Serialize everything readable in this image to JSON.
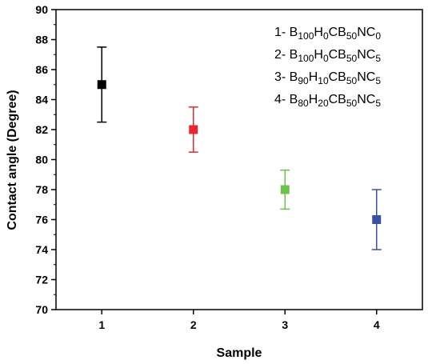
{
  "chart_data": {
    "type": "scatter",
    "title": "",
    "xlabel": "Sample",
    "ylabel": "Contact angle (Degree)",
    "xlim": [
      0.5,
      4.5
    ],
    "ylim": [
      70,
      90
    ],
    "x_ticks": [
      "1",
      "2",
      "3",
      "4"
    ],
    "y_ticks": [
      "70",
      "72",
      "74",
      "76",
      "78",
      "80",
      "82",
      "84",
      "86",
      "88",
      "90"
    ],
    "grid": false,
    "legend_position": "top-right",
    "points": [
      {
        "x": 1,
        "y": 85,
        "err_low": 82.5,
        "err_high": 87.5,
        "color": "#000000"
      },
      {
        "x": 2,
        "y": 82,
        "err_low": 80.5,
        "err_high": 83.5,
        "color": "#e8262b"
      },
      {
        "x": 3,
        "y": 78,
        "err_low": 76.7,
        "err_high": 79.3,
        "color": "#6cc24a"
      },
      {
        "x": 4,
        "y": 76,
        "err_low": 74,
        "err_high": 78,
        "color": "#3a52a5"
      }
    ],
    "legend": [
      {
        "prefix": "1- ",
        "parts": [
          [
            "B",
            ""
          ],
          [
            "100",
            "sub"
          ],
          [
            "H",
            ""
          ],
          [
            "0",
            "sub"
          ],
          [
            "CB",
            ""
          ],
          [
            "50",
            "sub"
          ],
          [
            "NC",
            ""
          ],
          [
            "0",
            "sub"
          ]
        ]
      },
      {
        "prefix": "2- ",
        "parts": [
          [
            "B",
            ""
          ],
          [
            "100",
            "sub"
          ],
          [
            "H",
            ""
          ],
          [
            "0",
            "sub"
          ],
          [
            "CB",
            ""
          ],
          [
            "50",
            "sub"
          ],
          [
            "NC",
            ""
          ],
          [
            "5",
            "sub"
          ]
        ]
      },
      {
        "prefix": "3- ",
        "parts": [
          [
            "B",
            ""
          ],
          [
            "90",
            "sub"
          ],
          [
            "H",
            ""
          ],
          [
            "10",
            "sub"
          ],
          [
            "CB",
            ""
          ],
          [
            "50",
            "sub"
          ],
          [
            "NC",
            ""
          ],
          [
            "5",
            "sub"
          ]
        ]
      },
      {
        "prefix": "4- ",
        "parts": [
          [
            "B",
            ""
          ],
          [
            "80",
            "sub"
          ],
          [
            "H",
            ""
          ],
          [
            "20",
            "sub"
          ],
          [
            "CB",
            ""
          ],
          [
            "50",
            "sub"
          ],
          [
            "NC",
            ""
          ],
          [
            "5",
            "sub"
          ]
        ]
      }
    ]
  }
}
